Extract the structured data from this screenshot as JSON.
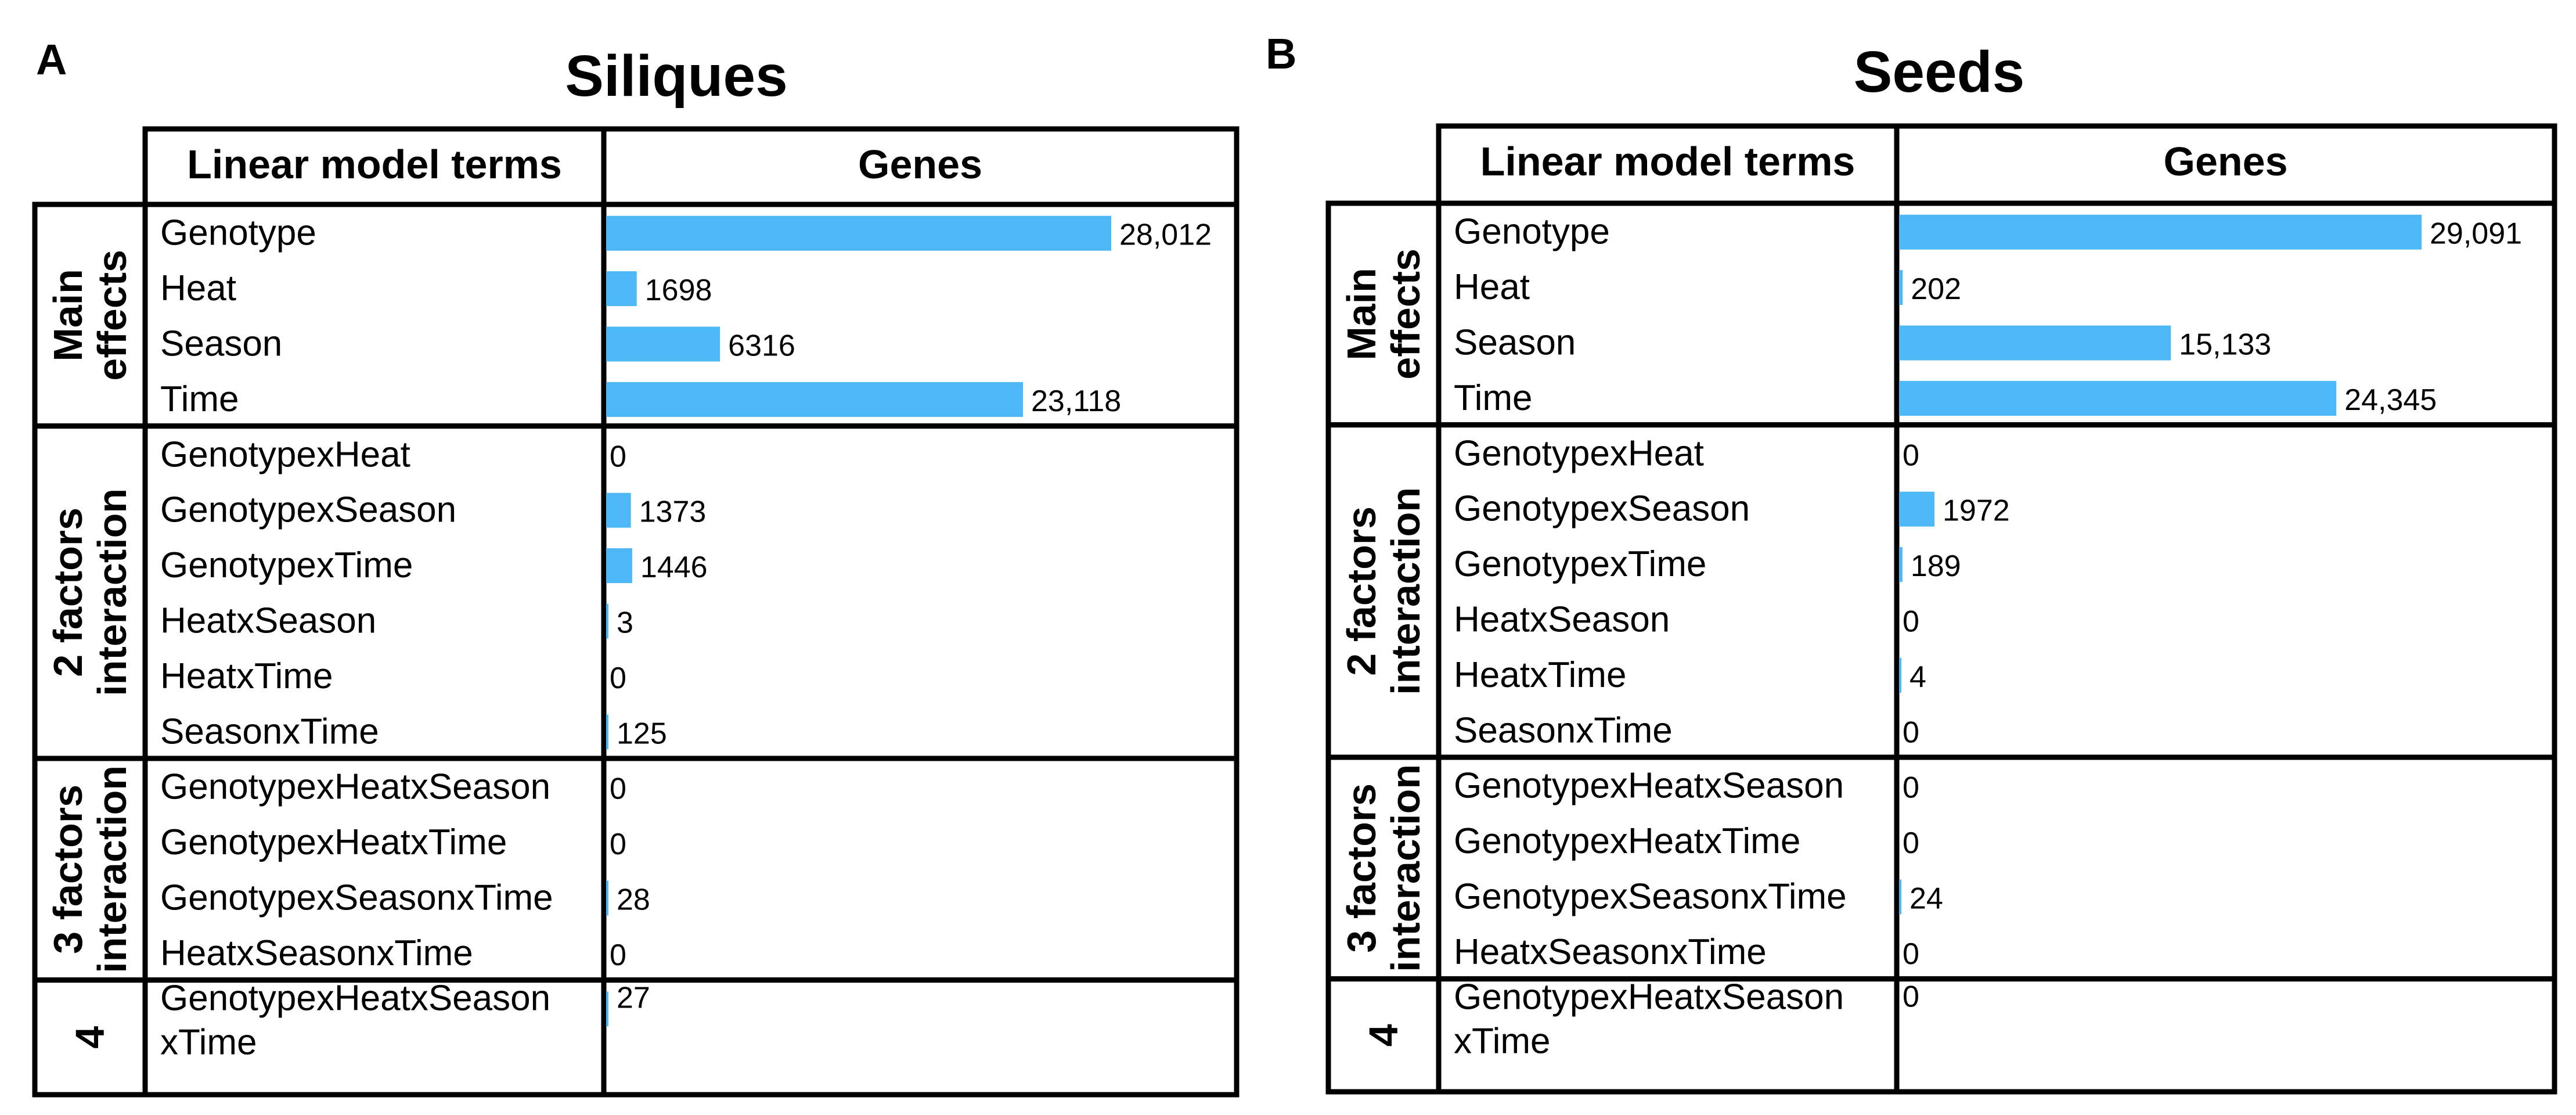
{
  "colors": {
    "bar": "#4DB8F5",
    "line": "#000000",
    "background": "#ffffff"
  },
  "chart_data": [
    {
      "type": "bar",
      "orientation": "horizontal",
      "panel_letter": "A",
      "title": "Siliques",
      "column_headers": [
        "Linear model terms",
        "Genes"
      ],
      "groups": [
        {
          "label_lines": [
            "Main",
            "effects"
          ],
          "rows": [
            {
              "term_lines": [
                "Genotype"
              ],
              "value": 28012,
              "label": "28,012"
            },
            {
              "term_lines": [
                "Heat"
              ],
              "value": 1698,
              "label": "1698"
            },
            {
              "term_lines": [
                "Season"
              ],
              "value": 6316,
              "label": "6316"
            },
            {
              "term_lines": [
                "Time"
              ],
              "value": 23118,
              "label": "23,118"
            }
          ]
        },
        {
          "label_lines": [
            "2 factors",
            "interaction"
          ],
          "rows": [
            {
              "term_lines": [
                "GenotypexHeat"
              ],
              "value": 0,
              "label": "0"
            },
            {
              "term_lines": [
                "GenotypexSeason"
              ],
              "value": 1373,
              "label": "1373"
            },
            {
              "term_lines": [
                "GenotypexTime"
              ],
              "value": 1446,
              "label": "1446"
            },
            {
              "term_lines": [
                "HeatxSeason"
              ],
              "value": 3,
              "label": "3"
            },
            {
              "term_lines": [
                "HeatxTime"
              ],
              "value": 0,
              "label": "0"
            },
            {
              "term_lines": [
                "SeasonxTime"
              ],
              "value": 125,
              "label": "125"
            }
          ]
        },
        {
          "label_lines": [
            "3 factors",
            "interaction"
          ],
          "rows": [
            {
              "term_lines": [
                "GenotypexHeatxSeason"
              ],
              "value": 0,
              "label": "0"
            },
            {
              "term_lines": [
                "GenotypexHeatxTime"
              ],
              "value": 0,
              "label": "0"
            },
            {
              "term_lines": [
                "GenotypexSeasonxTime"
              ],
              "value": 28,
              "label": "28"
            },
            {
              "term_lines": [
                "HeatxSeasonxTime"
              ],
              "value": 0,
              "label": "0"
            }
          ]
        },
        {
          "label_lines": [
            "4"
          ],
          "rows": [
            {
              "term_lines": [
                "GenotypexHeatxSeason",
                "xTime"
              ],
              "value": 27,
              "label": "27"
            }
          ]
        }
      ]
    },
    {
      "type": "bar",
      "orientation": "horizontal",
      "panel_letter": "B",
      "title": "Seeds",
      "column_headers": [
        "Linear model terms",
        "Genes"
      ],
      "groups": [
        {
          "label_lines": [
            "Main",
            "effects"
          ],
          "rows": [
            {
              "term_lines": [
                "Genotype"
              ],
              "value": 29091,
              "label": "29,091"
            },
            {
              "term_lines": [
                "Heat"
              ],
              "value": 202,
              "label": "202"
            },
            {
              "term_lines": [
                "Season"
              ],
              "value": 15133,
              "label": "15,133"
            },
            {
              "term_lines": [
                "Time"
              ],
              "value": 24345,
              "label": "24,345"
            }
          ]
        },
        {
          "label_lines": [
            "2 factors",
            "interaction"
          ],
          "rows": [
            {
              "term_lines": [
                "GenotypexHeat"
              ],
              "value": 0,
              "label": "0"
            },
            {
              "term_lines": [
                "GenotypexSeason"
              ],
              "value": 1972,
              "label": "1972"
            },
            {
              "term_lines": [
                "GenotypexTime"
              ],
              "value": 189,
              "label": "189"
            },
            {
              "term_lines": [
                "HeatxSeason"
              ],
              "value": 0,
              "label": "0"
            },
            {
              "term_lines": [
                "HeatxTime"
              ],
              "value": 4,
              "label": "4"
            },
            {
              "term_lines": [
                "SeasonxTime"
              ],
              "value": 0,
              "label": "0"
            }
          ]
        },
        {
          "label_lines": [
            "3 factors",
            "interaction"
          ],
          "rows": [
            {
              "term_lines": [
                "GenotypexHeatxSeason"
              ],
              "value": 0,
              "label": "0"
            },
            {
              "term_lines": [
                "GenotypexHeatxTime"
              ],
              "value": 0,
              "label": "0"
            },
            {
              "term_lines": [
                "GenotypexSeasonxTime"
              ],
              "value": 24,
              "label": "24"
            },
            {
              "term_lines": [
                "HeatxSeasonxTime"
              ],
              "value": 0,
              "label": "0"
            }
          ]
        },
        {
          "label_lines": [
            "4"
          ],
          "rows": [
            {
              "term_lines": [
                "GenotypexHeatxSeason",
                "xTime"
              ],
              "value": 0,
              "label": "0"
            }
          ]
        }
      ]
    }
  ]
}
